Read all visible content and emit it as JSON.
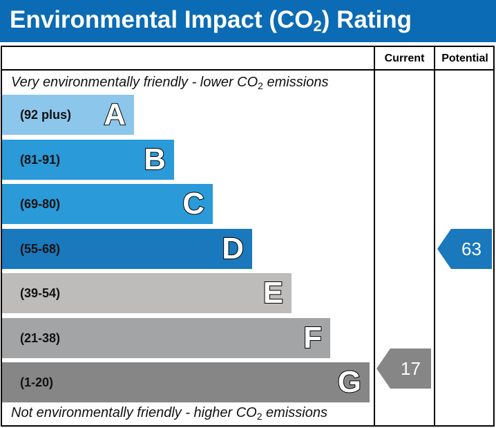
{
  "title": {
    "prefix": "Environmental Impact (CO",
    "sub": "2",
    "suffix": ") Rating"
  },
  "columns": {
    "current": "Current",
    "potential": "Potential"
  },
  "notes": {
    "top": {
      "prefix": "Very environmentally friendly - lower CO",
      "sub": "2",
      "suffix": " emissions"
    },
    "bottom": {
      "prefix": "Not environmentally friendly - higher CO",
      "sub": "2",
      "suffix": " emissions"
    }
  },
  "chart_data": {
    "type": "bar",
    "categories": [
      "A",
      "B",
      "C",
      "D",
      "E",
      "F",
      "G"
    ],
    "bands": [
      {
        "letter": "A",
        "range": "(92 plus)",
        "color": "#8cc6eb"
      },
      {
        "letter": "B",
        "range": "(81-91)",
        "color": "#2a9ad8"
      },
      {
        "letter": "C",
        "range": "(69-80)",
        "color": "#2a9ad8"
      },
      {
        "letter": "D",
        "range": "(55-68)",
        "color": "#1a78bd"
      },
      {
        "letter": "E",
        "range": "(39-54)",
        "color": "#bdbcbb"
      },
      {
        "letter": "F",
        "range": "(21-38)",
        "color": "#a3a4a6"
      },
      {
        "letter": "G",
        "range": "(1-20)",
        "color": "#868686"
      }
    ],
    "current": {
      "value": 17,
      "band": "G",
      "color": "#868686"
    },
    "potential": {
      "value": 63,
      "band": "D",
      "color": "#1a78bd"
    }
  }
}
